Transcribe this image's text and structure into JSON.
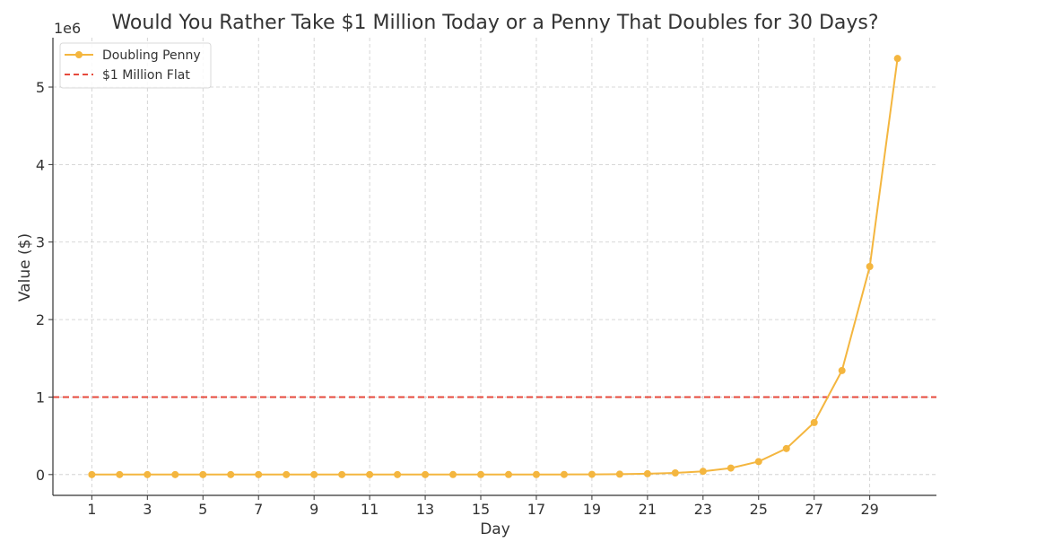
{
  "chart_data": {
    "type": "line",
    "title": "Would You Rather Take $1 Million Today or a Penny That Doubles for 30 Days?",
    "xlabel": "Day",
    "ylabel": "Value ($)",
    "y_offset_label": "1e6",
    "xlim": [
      -0.4,
      31.4
    ],
    "ylim": [
      -268435,
      5637144
    ],
    "x_ticks": [
      1,
      3,
      5,
      7,
      9,
      11,
      13,
      15,
      17,
      19,
      21,
      23,
      25,
      27,
      29
    ],
    "y_ticks": [
      0,
      1000000,
      2000000,
      3000000,
      4000000,
      5000000
    ],
    "y_tick_labels": [
      "0",
      "1",
      "2",
      "3",
      "4",
      "5"
    ],
    "grid": true,
    "legend_position": "upper-left",
    "colors": {
      "penny": "#F4B63F",
      "flat": "#E64A3C",
      "grid": "#cccccc",
      "axis": "#333333"
    },
    "series": [
      {
        "name": "Doubling Penny",
        "style": "line-with-markers",
        "x": [
          1,
          2,
          3,
          4,
          5,
          6,
          7,
          8,
          9,
          10,
          11,
          12,
          13,
          14,
          15,
          16,
          17,
          18,
          19,
          20,
          21,
          22,
          23,
          24,
          25,
          26,
          27,
          28,
          29,
          30
        ],
        "values": [
          0.01,
          0.02,
          0.04,
          0.08,
          0.16,
          0.32,
          0.64,
          1.28,
          2.56,
          5.12,
          10.24,
          20.48,
          40.96,
          81.92,
          163.84,
          327.68,
          655.36,
          1310.72,
          2621.44,
          5242.88,
          10485.76,
          20971.52,
          41943.04,
          83886.08,
          167772.16,
          335544.32,
          671088.64,
          1342177.28,
          2684354.56,
          5368709.12
        ]
      },
      {
        "name": "$1 Million Flat",
        "style": "dashed-horizontal",
        "value": 1000000
      }
    ]
  }
}
